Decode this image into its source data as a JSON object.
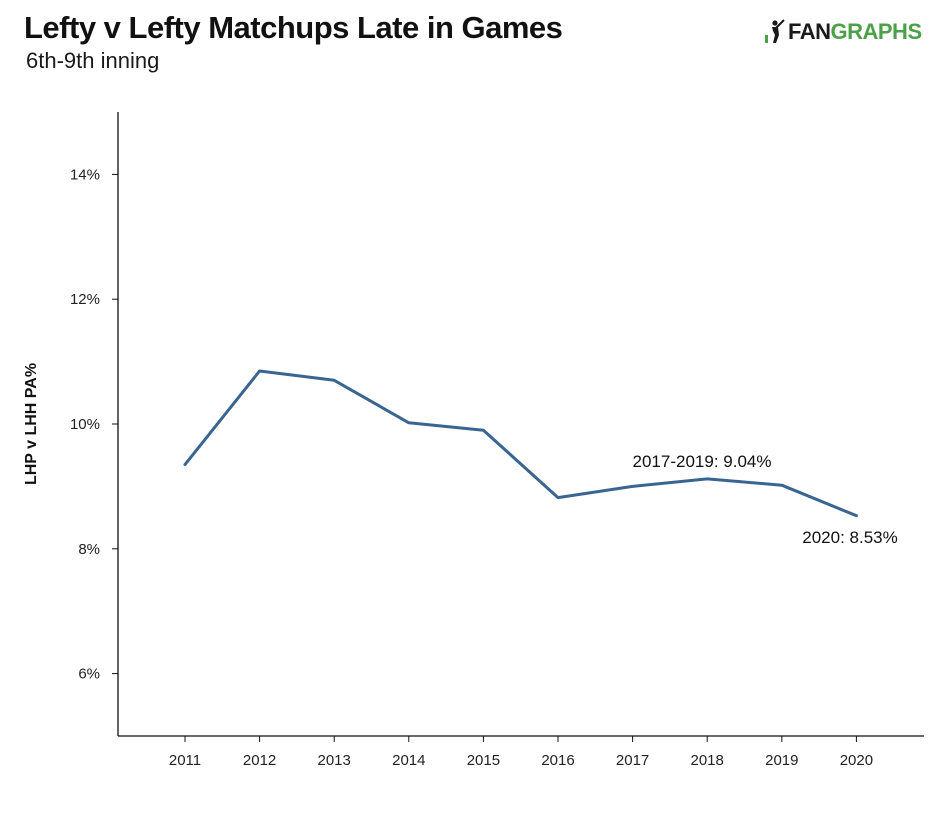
{
  "header": {
    "title": "Lefty v Lefty Matchups Late in Games",
    "subtitle": "6th-9th inning",
    "logo": {
      "part1": "FAN",
      "part2": "GRAPHS",
      "icon": "batter-icon"
    }
  },
  "colors": {
    "line": "#3a6592",
    "logo_green": "#4da04a"
  },
  "chart_data": {
    "type": "line",
    "title": "Lefty v Lefty Matchups Late in Games",
    "subtitle": "6th-9th inning",
    "xlabel": "",
    "ylabel": "LHP v LHH PA%",
    "x": [
      "2011",
      "2012",
      "2013",
      "2014",
      "2015",
      "2016",
      "2017",
      "2018",
      "2019",
      "2020"
    ],
    "series": [
      {
        "values": [
          9.35,
          10.85,
          10.7,
          10.02,
          9.9,
          8.82,
          9.0,
          9.12,
          9.02,
          8.53
        ]
      }
    ],
    "ylim": [
      5,
      15
    ],
    "yticks": [
      6,
      8,
      10,
      12,
      14
    ],
    "ytick_labels": [
      "6%",
      "8%",
      "10%",
      "12%",
      "14%"
    ],
    "grid": false,
    "annotations": [
      {
        "text": "2017-2019: 9.04%"
      },
      {
        "text": "2020: 8.53%"
      }
    ]
  }
}
